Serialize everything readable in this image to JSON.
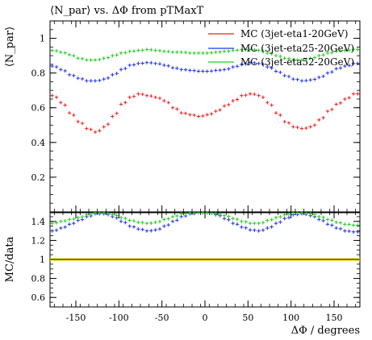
{
  "chart_data": [
    {
      "type": "scatter",
      "title": "⟨N_par⟩ vs. ΔΦ from pTMaxT",
      "ylabel": "⟨N_par⟩",
      "xlabel": "",
      "xlim": [
        -180,
        180
      ],
      "ylim": [
        0.0,
        1.1
      ],
      "yticks": [
        "0.2",
        "0.4",
        "0.6",
        "0.8",
        "1"
      ],
      "legend_placement": "top-right",
      "x": [
        -175,
        -165,
        -155,
        -145,
        -135,
        -125,
        -115,
        -105,
        -95,
        -85,
        -75,
        -65,
        -55,
        -45,
        -35,
        -25,
        -15,
        -5,
        5,
        15,
        25,
        35,
        45,
        55,
        65,
        75,
        85,
        95,
        105,
        115,
        125,
        135,
        145,
        155,
        165,
        175
      ],
      "series": [
        {
          "name": "MC (3jet-eta1-20GeV)",
          "color": "#ee2222",
          "values": [
            0.67,
            0.63,
            0.57,
            0.52,
            0.48,
            0.46,
            0.49,
            0.55,
            0.62,
            0.66,
            0.68,
            0.67,
            0.66,
            0.64,
            0.6,
            0.57,
            0.56,
            0.55,
            0.56,
            0.58,
            0.61,
            0.64,
            0.67,
            0.68,
            0.67,
            0.63,
            0.57,
            0.52,
            0.49,
            0.48,
            0.49,
            0.53,
            0.58,
            0.62,
            0.65,
            0.68
          ]
        },
        {
          "name": "MC (3jet-eta25-20GeV)",
          "color": "#2233ee",
          "values": [
            0.84,
            0.82,
            0.79,
            0.77,
            0.755,
            0.755,
            0.765,
            0.79,
            0.82,
            0.845,
            0.855,
            0.86,
            0.855,
            0.845,
            0.83,
            0.82,
            0.815,
            0.81,
            0.81,
            0.815,
            0.82,
            0.835,
            0.85,
            0.86,
            0.855,
            0.835,
            0.81,
            0.785,
            0.765,
            0.755,
            0.76,
            0.775,
            0.8,
            0.825,
            0.84,
            0.855
          ]
        },
        {
          "name": "MC (3jet-eta52-20GeV)",
          "color": "#22cc22",
          "values": [
            0.93,
            0.92,
            0.905,
            0.885,
            0.875,
            0.875,
            0.885,
            0.9,
            0.915,
            0.925,
            0.93,
            0.935,
            0.93,
            0.925,
            0.92,
            0.92,
            0.915,
            0.915,
            0.915,
            0.92,
            0.925,
            0.93,
            0.935,
            0.935,
            0.93,
            0.915,
            0.9,
            0.885,
            0.875,
            0.875,
            0.885,
            0.9,
            0.915,
            0.925,
            0.93,
            0.935
          ]
        }
      ]
    },
    {
      "type": "scatter",
      "title": "",
      "ylabel": "MC/data",
      "xlabel": "ΔΦ / degrees",
      "xlim": [
        -180,
        180
      ],
      "ylim": [
        0.5,
        1.5
      ],
      "xticks": [
        "-150",
        "-100",
        "-50",
        "0",
        "50",
        "100",
        "150"
      ],
      "yticks": [
        "0.6",
        "0.8",
        "1",
        "1.2",
        "1.4"
      ],
      "reference_line": 1.0,
      "reference_band": [
        0.985,
        1.015
      ],
      "x": [
        -175,
        -165,
        -155,
        -145,
        -135,
        -125,
        -115,
        -105,
        -95,
        -85,
        -75,
        -65,
        -55,
        -45,
        -35,
        -25,
        -15,
        -5,
        5,
        15,
        25,
        35,
        45,
        55,
        65,
        75,
        85,
        95,
        105,
        115,
        125,
        135,
        145,
        155,
        165,
        175
      ],
      "series": [
        {
          "name": "MC (3jet-eta25-20GeV)",
          "color": "#2233ee",
          "values": [
            1.3,
            1.33,
            1.37,
            1.41,
            1.45,
            1.48,
            1.48,
            1.45,
            1.4,
            1.35,
            1.32,
            1.3,
            1.31,
            1.35,
            1.4,
            1.45,
            1.48,
            1.49,
            1.49,
            1.47,
            1.43,
            1.38,
            1.34,
            1.31,
            1.3,
            1.33,
            1.38,
            1.43,
            1.47,
            1.48,
            1.46,
            1.42,
            1.37,
            1.33,
            1.3,
            1.29
          ]
        },
        {
          "name": "MC (3jet-eta52-20GeV)",
          "color": "#22cc22",
          "values": [
            1.38,
            1.4,
            1.42,
            1.44,
            1.47,
            1.49,
            1.49,
            1.47,
            1.44,
            1.41,
            1.39,
            1.38,
            1.39,
            1.42,
            1.45,
            1.48,
            1.49,
            1.49,
            1.49,
            1.48,
            1.46,
            1.43,
            1.4,
            1.38,
            1.38,
            1.41,
            1.44,
            1.47,
            1.49,
            1.49,
            1.48,
            1.45,
            1.42,
            1.39,
            1.37,
            1.36
          ]
        }
      ]
    }
  ]
}
